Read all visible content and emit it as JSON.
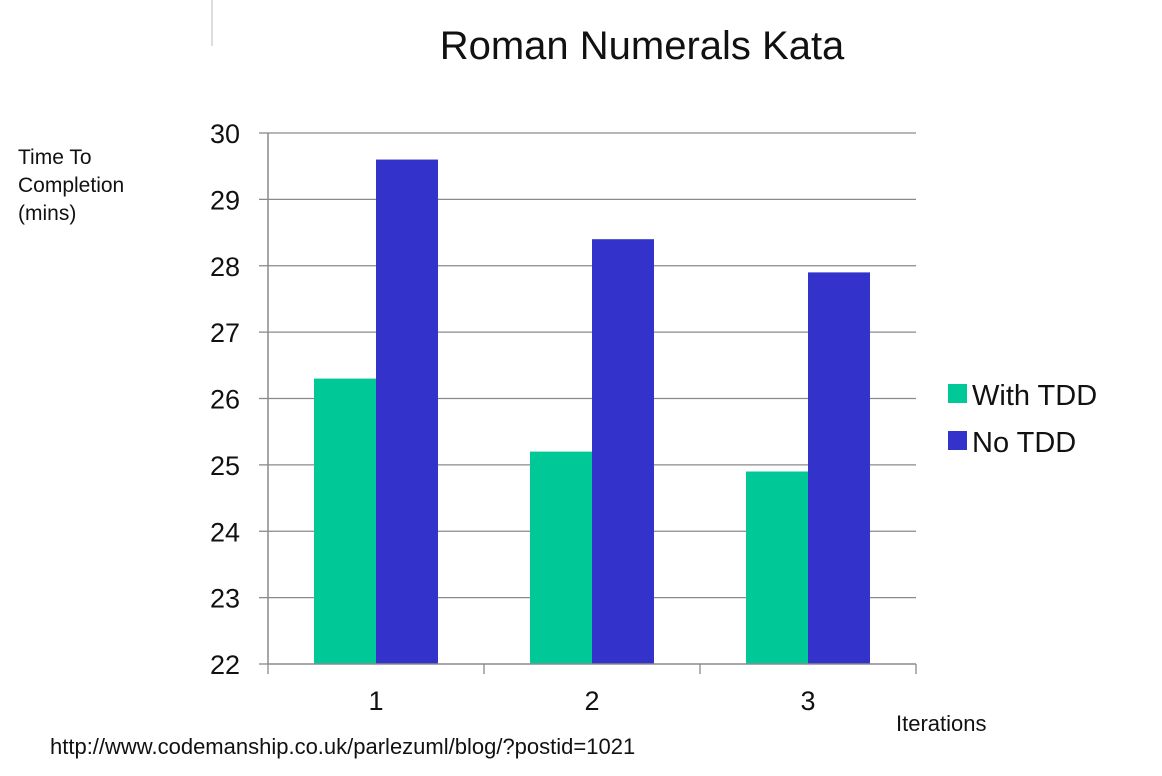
{
  "chart_data": {
    "type": "bar",
    "title": "Roman Numerals Kata",
    "ylabel_lines": [
      "Time To",
      "Completion",
      "(mins)"
    ],
    "xlabel": "Iterations",
    "categories": [
      "1",
      "2",
      "3"
    ],
    "series": [
      {
        "name": "With TDD",
        "values": [
          26.3,
          25.2,
          24.9
        ],
        "color": "#00c997"
      },
      {
        "name": "No TDD",
        "values": [
          29.6,
          28.4,
          27.9
        ],
        "color": "#3333cc"
      }
    ],
    "ylim": [
      22,
      30
    ],
    "yticks": [
      22,
      23,
      24,
      25,
      26,
      27,
      28,
      29,
      30
    ],
    "grid": true,
    "legend_position": "right"
  },
  "footer": {
    "source_url": "http://www.codemanship.co.uk/parlezuml/blog/?postid=1021"
  }
}
